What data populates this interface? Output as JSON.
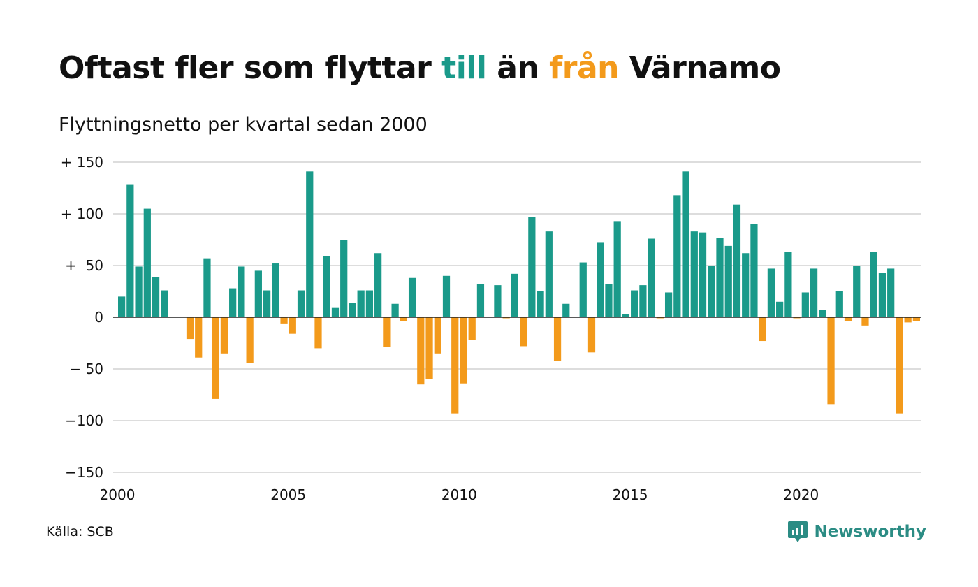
{
  "title": {
    "part1": "Oftast fler som flyttar ",
    "part2": "till",
    "part3": " än ",
    "part4": "från",
    "part5": " Värnamo"
  },
  "subtitle": "Flyttningsnetto per kvartal sedan 2000",
  "source": "Källa: SCB",
  "brand": "Newsworthy",
  "colors": {
    "positive": "#1a9a8a",
    "negative": "#f39a1b",
    "grid": "#dddddd",
    "brand": "#2b8c84"
  },
  "chart_data": {
    "type": "bar",
    "title": "Flyttningsnetto per kvartal sedan 2000",
    "xlabel": "",
    "ylabel": "",
    "ylim": [
      -150,
      150
    ],
    "y_ticks": [
      {
        "value": 150,
        "label": "+ 150"
      },
      {
        "value": 100,
        "label": "+ 100"
      },
      {
        "value": 50,
        "label": "+  50"
      },
      {
        "value": 0,
        "label": "0"
      },
      {
        "value": -50,
        "label": "− 50"
      },
      {
        "value": -100,
        "label": "−100"
      },
      {
        "value": -150,
        "label": "−150"
      }
    ],
    "x_ticks": [
      {
        "value": 2000,
        "label": "2000"
      },
      {
        "value": 2005,
        "label": "2005"
      },
      {
        "value": 2010,
        "label": "2010"
      },
      {
        "value": 2015,
        "label": "2015"
      },
      {
        "value": 2020,
        "label": "2020"
      }
    ],
    "x_start": 2000,
    "quarters_per_year": 4,
    "values": [
      20,
      128,
      49,
      105,
      39,
      26,
      0,
      0,
      -21,
      -39,
      57,
      -79,
      -35,
      28,
      49,
      -44,
      45,
      26,
      52,
      -6,
      -16,
      26,
      141,
      -30,
      59,
      9,
      75,
      14,
      26,
      26,
      62,
      -29,
      13,
      -4,
      38,
      -65,
      -60,
      -35,
      40,
      -93,
      -64,
      -22,
      32,
      0,
      31,
      -1,
      42,
      -28,
      97,
      25,
      83,
      -42,
      13,
      0,
      53,
      -34,
      72,
      32,
      93,
      3,
      26,
      31,
      76,
      -1,
      24,
      118,
      141,
      83,
      82,
      50,
      77,
      69,
      109,
      62,
      90,
      -23,
      47,
      15,
      63,
      -1,
      24,
      47,
      7,
      -84,
      25,
      -4,
      50,
      -8,
      63,
      43,
      47,
      -93,
      -5,
      -4
    ]
  }
}
